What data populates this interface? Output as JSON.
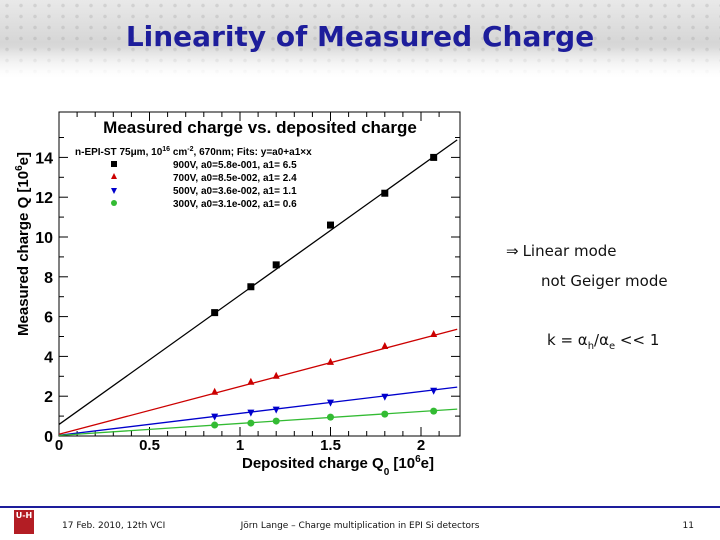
{
  "slide": {
    "title": "Linearity of Measured Charge",
    "annotations": {
      "linear_mode": "Linear mode",
      "not_geiger": "not Geiger mode",
      "k_label": "k = ",
      "alpha_h": "α",
      "h_sub": "h",
      "slash": "/",
      "alpha_e": "α",
      "e_sub": "e",
      "k_suffix": " << 1"
    },
    "footer": {
      "logo_text": "U-H",
      "date": "17 Feb. 2010,  12th VCI",
      "center": "Jörn Lange – Charge multiplication in EPI Si detectors",
      "page": "11"
    }
  },
  "chart_data": {
    "type": "scatter",
    "title": "Measured charge vs. deposited charge",
    "xlabel": "Deposited charge Q0 [10^6e]",
    "ylabel": "Measured charge Q [10^6e]",
    "xlim": [
      0,
      2.2
    ],
    "ylim": [
      0,
      15
    ],
    "x_ticks": [
      "0",
      "0.5",
      "1",
      "1.5",
      "2"
    ],
    "y_ticks": [
      "0",
      "2",
      "4",
      "6",
      "8",
      "10",
      "12",
      "14"
    ],
    "legend_header": "n-EPI-ST 75μm, 10^16 cm^-2, 670nm; Fits: y=a0+a1×x",
    "legend_position": "top-left",
    "series": [
      {
        "name": "900V, a0=5.8e-001, a1= 6.5",
        "color": "#000000",
        "marker": "square",
        "x": [
          0.86,
          1.06,
          1.2,
          1.5,
          1.8,
          2.07
        ],
        "y": [
          6.2,
          7.5,
          8.6,
          10.6,
          12.2,
          14.0
        ],
        "fit": {
          "a0": 0.58,
          "a1": 6.5
        }
      },
      {
        "name": "700V, a0=8.5e-002, a1= 2.4",
        "color": "#cc0000",
        "marker": "triangle-up",
        "x": [
          0.86,
          1.06,
          1.2,
          1.5,
          1.8,
          2.07
        ],
        "y": [
          2.2,
          2.7,
          3.0,
          3.7,
          4.5,
          5.1
        ],
        "fit": {
          "a0": 0.085,
          "a1": 2.4
        }
      },
      {
        "name": "500V, a0=3.6e-002, a1= 1.1",
        "color": "#0000cc",
        "marker": "triangle-down",
        "x": [
          0.86,
          1.06,
          1.2,
          1.5,
          1.8,
          2.07
        ],
        "y": [
          1.0,
          1.2,
          1.35,
          1.7,
          2.0,
          2.3
        ],
        "fit": {
          "a0": 0.036,
          "a1": 1.1
        }
      },
      {
        "name": "300V, a0=3.1e-002, a1= 0.6",
        "color": "#33bb33",
        "marker": "circle",
        "x": [
          0.86,
          1.06,
          1.2,
          1.5,
          1.8,
          2.07
        ],
        "y": [
          0.55,
          0.65,
          0.75,
          0.95,
          1.1,
          1.25
        ],
        "fit": {
          "a0": 0.031,
          "a1": 0.6
        }
      }
    ]
  }
}
